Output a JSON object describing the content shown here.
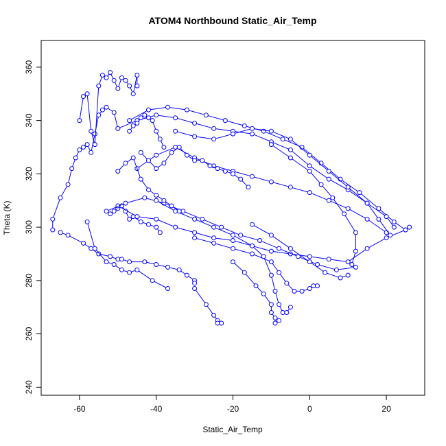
{
  "chart_data": {
    "type": "scatter",
    "title": "ATOM4 Northbound Static_Air_Temp",
    "xlabel": "Static_Air_Temp",
    "ylabel": "Theta (K)",
    "xlim": [
      -70,
      30
    ],
    "ylim": [
      237,
      370
    ],
    "x_ticks": [
      -60,
      -40,
      -20,
      0,
      20
    ],
    "y_ticks": [
      240,
      260,
      280,
      300,
      320,
      340,
      360
    ],
    "grid": false,
    "legend": "none",
    "mark_style": "open circles joined by lines",
    "color": "#0000ff",
    "series": [
      {
        "x": [
          -67,
          -67,
          -65,
          -63,
          -62,
          -61,
          -60,
          -59,
          -58,
          -57,
          -56,
          -55,
          -54,
          -53,
          -51,
          -50
        ],
        "y": [
          299,
          303,
          311,
          316,
          322,
          326,
          329,
          330,
          331,
          328,
          335,
          342,
          344,
          345,
          343,
          337
        ]
      },
      {
        "x": [
          -65,
          -63,
          -59,
          -57,
          -55,
          -52,
          -50,
          -49,
          -47,
          -43,
          -40,
          -37,
          -34,
          -32,
          -30,
          -30
        ],
        "y": [
          298,
          297,
          294,
          292,
          290,
          289,
          288,
          288,
          287,
          287,
          286,
          285,
          284,
          282,
          280,
          279
        ]
      },
      {
        "x": [
          -58,
          -56,
          -53,
          -51,
          -49,
          -47,
          -45,
          -41,
          -37
        ],
        "y": [
          302,
          292,
          287,
          286,
          284,
          283,
          284,
          280,
          277
        ]
      },
      {
        "x": [
          -60,
          -59,
          -58,
          -57,
          -56,
          -55,
          -54,
          -53,
          -52,
          -51,
          -50,
          -49,
          -48,
          -47,
          -46,
          -45,
          -45
        ],
        "y": [
          340,
          349,
          350,
          336,
          331,
          353,
          357,
          356,
          358,
          355,
          352,
          356,
          355,
          353,
          350,
          357,
          353
        ]
      },
      {
        "x": [
          -52,
          -51,
          -50,
          -49,
          -48,
          -47,
          -46,
          -44,
          -42,
          -40,
          -39
        ],
        "y": [
          305,
          306,
          307,
          308,
          306,
          303,
          304,
          302,
          301,
          300,
          298
        ]
      },
      {
        "x": [
          -30,
          -27,
          -25,
          -24,
          -24,
          -23
        ],
        "y": [
          277,
          271,
          267,
          265,
          264,
          264
        ]
      },
      {
        "x": [
          -50,
          -45,
          -40,
          -35,
          -30,
          -25,
          -20,
          -15,
          -10,
          -5,
          0,
          5,
          10,
          15,
          20,
          25,
          26
        ],
        "y": [
          308,
          304,
          303,
          300,
          298,
          296,
          295,
          293,
          291,
          290,
          289,
          288,
          287,
          292,
          296,
          299,
          300
        ]
      },
      {
        "x": [
          -47,
          -42,
          -37,
          -32,
          -27,
          -22,
          -17,
          -12,
          -7,
          -2,
          3,
          8,
          13,
          18,
          22,
          25
        ],
        "y": [
          340,
          344,
          345,
          344,
          342,
          340,
          338,
          336,
          333,
          330,
          324,
          318,
          313,
          307,
          302,
          299
        ]
      },
      {
        "x": [
          -50,
          -45,
          -40,
          -35,
          -30,
          -25,
          -20,
          -15,
          -10,
          -5,
          0,
          5,
          10,
          15,
          20,
          22
        ],
        "y": [
          337,
          340,
          342,
          341,
          339,
          337,
          336,
          335,
          332,
          329,
          323,
          318,
          314,
          309,
          304,
          300
        ]
      },
      {
        "x": [
          -45,
          -40,
          -35,
          -30,
          -25,
          -20,
          -15,
          -10,
          -5,
          0,
          5,
          10,
          15,
          20
        ],
        "y": [
          322,
          327,
          330,
          326,
          323,
          321,
          319,
          317,
          315,
          313,
          310,
          307,
          303,
          298
        ]
      },
      {
        "x": [
          -53,
          -48,
          -43,
          -38,
          -33,
          -28,
          -23,
          -18,
          -13,
          -8,
          -3,
          2,
          7,
          12
        ],
        "y": [
          306,
          309,
          311,
          309,
          306,
          303,
          300,
          297,
          295,
          292,
          289,
          286,
          284,
          285
        ]
      },
      {
        "x": [
          -40,
          -35,
          -30,
          -25,
          -20,
          -15,
          -12,
          -10,
          -9,
          -8,
          -7,
          -6,
          -5
        ],
        "y": [
          310,
          306,
          303,
          300,
          297,
          293,
          289,
          282,
          276,
          271,
          268,
          268,
          270
        ]
      },
      {
        "x": [
          -30,
          -25,
          -20,
          -15,
          -10,
          -8,
          -6,
          -4,
          -2,
          0,
          1,
          2
        ],
        "y": [
          296,
          294,
          292,
          290,
          287,
          283,
          279,
          276,
          276,
          277,
          278,
          278
        ]
      },
      {
        "x": [
          -20,
          -17,
          -14,
          -12,
          -10,
          -10,
          -9,
          -9,
          -8
        ],
        "y": [
          287,
          283,
          278,
          275,
          271,
          268,
          266,
          264,
          265
        ]
      },
      {
        "x": [
          -35,
          -30,
          -25,
          -20,
          -15,
          -10,
          -5,
          0,
          5,
          10,
          15,
          18,
          21
        ],
        "y": [
          336,
          334,
          333,
          335,
          337,
          336,
          333,
          327,
          321,
          315,
          309,
          303,
          297
        ]
      },
      {
        "x": [
          -44,
          -42,
          -40,
          -38,
          -36,
          -34,
          -32,
          -30,
          -28,
          -26,
          -24,
          -22,
          -20,
          -18,
          -16
        ],
        "y": [
          328,
          325,
          322,
          324,
          328,
          330,
          327,
          325,
          325,
          323,
          322,
          321,
          320,
          318,
          315
        ]
      },
      {
        "x": [
          -47,
          -46,
          -45,
          -44,
          -43,
          -42,
          -41,
          -40,
          -39,
          -38
        ],
        "y": [
          336,
          338,
          339,
          341,
          342,
          341,
          340,
          336,
          333,
          330
        ]
      },
      {
        "x": [
          -50,
          -48,
          -46,
          -44,
          -42,
          -40,
          -38,
          -36,
          -34
        ],
        "y": [
          321,
          324,
          326,
          318,
          314,
          312,
          310,
          308,
          306
        ]
      },
      {
        "x": [
          -10,
          -5,
          0,
          3,
          6,
          9,
          12,
          12,
          11
        ],
        "y": [
          331,
          326,
          321,
          316,
          311,
          305,
          298,
          291,
          286
        ]
      },
      {
        "x": [
          -15,
          -10,
          -5,
          0,
          4,
          8,
          10
        ],
        "y": [
          301,
          297,
          292,
          287,
          283,
          281,
          282
        ]
      }
    ]
  }
}
